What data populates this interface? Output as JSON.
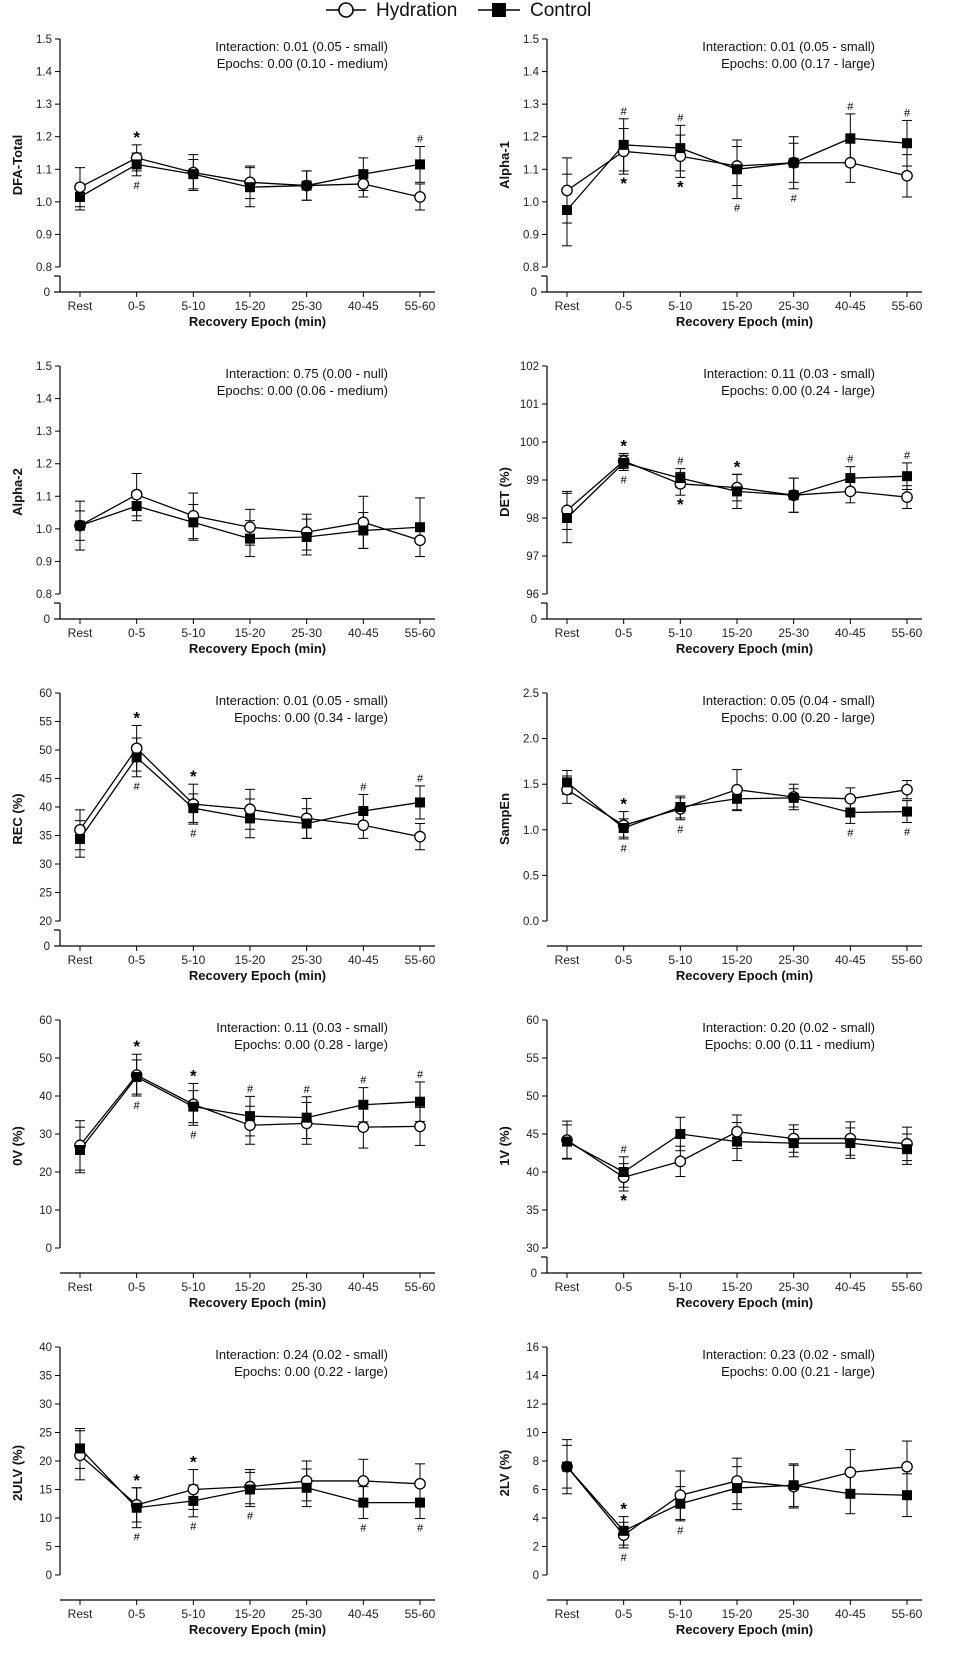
{
  "legend": [
    {
      "name": "Hydration",
      "marker": "open-circle"
    },
    {
      "name": "Control",
      "marker": "filled-square"
    }
  ],
  "chart_data": [
    {
      "type": "line",
      "ylabel": "DFA-Total",
      "xlabel": "Recovery Epoch (min)",
      "categories": [
        "Rest",
        "0-5",
        "5-10",
        "15-20",
        "25-30",
        "40-45",
        "55-60"
      ],
      "ylim": [
        0.8,
        1.5
      ],
      "ticks": [
        "0.8",
        "0.9",
        "1.0",
        "1.1",
        "1.2",
        "1.3",
        "1.4",
        "1.5"
      ],
      "zero_break": true,
      "annotation_lines": [
        "Interaction: 0.01 (0.05 - small)",
        "Epochs: 0.00 (0.10 - medium)"
      ],
      "series": [
        {
          "name": "Hydration",
          "values": [
            1.045,
            1.135,
            1.09,
            1.06,
            1.05,
            1.055,
            1.015
          ],
          "err": [
            0.06,
            0.04,
            0.055,
            0.05,
            0.045,
            0.04,
            0.04
          ]
        },
        {
          "name": "Control",
          "values": [
            1.015,
            1.115,
            1.085,
            1.045,
            1.05,
            1.085,
            1.115
          ],
          "err": [
            0.04,
            0.035,
            0.045,
            0.06,
            0.045,
            0.05,
            0.055
          ]
        }
      ],
      "marks_above": [
        {
          "i": 1,
          "s": "*"
        },
        {
          "i": 6,
          "s": "#"
        }
      ],
      "marks_below": [
        {
          "i": 1,
          "s": "#"
        }
      ]
    },
    {
      "type": "line",
      "ylabel": "Alpha-1",
      "xlabel": "Recovery Epoch (min)",
      "categories": [
        "Rest",
        "0-5",
        "5-10",
        "15-20",
        "25-30",
        "40-45",
        "55-60"
      ],
      "ylim": [
        0.8,
        1.5
      ],
      "ticks": [
        "0.8",
        "0.9",
        "1.0",
        "1.1",
        "1.2",
        "1.3",
        "1.4",
        "1.5"
      ],
      "zero_break": true,
      "annotation_lines": [
        "Interaction: 0.01 (0.05 - small)",
        "Epochs: 0.00 (0.17 - large)"
      ],
      "series": [
        {
          "name": "Hydration",
          "values": [
            1.035,
            1.155,
            1.14,
            1.11,
            1.12,
            1.12,
            1.08
          ],
          "err": [
            0.1,
            0.07,
            0.065,
            0.06,
            0.08,
            0.06,
            0.065
          ]
        },
        {
          "name": "Control",
          "values": [
            0.975,
            1.175,
            1.165,
            1.1,
            1.12,
            1.195,
            1.18
          ],
          "err": [
            0.11,
            0.08,
            0.07,
            0.09,
            0.06,
            0.075,
            0.07
          ]
        }
      ],
      "marks_above": [
        {
          "i": 1,
          "s": "#"
        },
        {
          "i": 2,
          "s": "#"
        },
        {
          "i": 5,
          "s": "#"
        },
        {
          "i": 6,
          "s": "#"
        }
      ],
      "marks_below": [
        {
          "i": 1,
          "s": "*"
        },
        {
          "i": 2,
          "s": "*"
        },
        {
          "i": 3,
          "s": "#"
        },
        {
          "i": 4,
          "s": "#"
        }
      ]
    },
    {
      "type": "line",
      "ylabel": "Alpha-2",
      "xlabel": "Recovery Epoch (min)",
      "categories": [
        "Rest",
        "0-5",
        "5-10",
        "15-20",
        "25-30",
        "40-45",
        "55-60"
      ],
      "ylim": [
        0.8,
        1.5
      ],
      "ticks": [
        "0.8",
        "0.9",
        "1.0",
        "1.1",
        "1.2",
        "1.3",
        "1.4",
        "1.5"
      ],
      "zero_break": true,
      "annotation_lines": [
        "Interaction: 0.75 (0.00 - null)",
        "Epochs: 0.00 (0.06 - medium)"
      ],
      "series": [
        {
          "name": "Hydration",
          "values": [
            1.01,
            1.105,
            1.04,
            1.005,
            0.99,
            1.02,
            0.965
          ],
          "err": [
            0.075,
            0.065,
            0.07,
            0.055,
            0.055,
            0.08,
            0.05
          ]
        },
        {
          "name": "Control",
          "values": [
            1.01,
            1.07,
            1.02,
            0.97,
            0.975,
            0.995,
            1.005
          ],
          "err": [
            0.045,
            0.045,
            0.055,
            0.055,
            0.055,
            0.055,
            0.09
          ]
        }
      ],
      "marks_above": [],
      "marks_below": []
    },
    {
      "type": "line",
      "ylabel": "DET (%)",
      "xlabel": "Recovery Epoch (min)",
      "categories": [
        "Rest",
        "0-5",
        "5-10",
        "15-20",
        "25-30",
        "40-45",
        "55-60"
      ],
      "ylim": [
        96,
        102
      ],
      "ticks": [
        "96",
        "97",
        "98",
        "99",
        "100",
        "101",
        "102"
      ],
      "zero_break": true,
      "annotation_lines": [
        "Interaction: 0.11 (0.03 - small)",
        "Epochs: 0.00 (0.24 - large)"
      ],
      "series": [
        {
          "name": "Hydration",
          "values": [
            98.2,
            99.5,
            98.9,
            98.8,
            98.6,
            98.7,
            98.55
          ],
          "err": [
            0.5,
            0.2,
            0.3,
            0.35,
            0.45,
            0.3,
            0.3
          ]
        },
        {
          "name": "Control",
          "values": [
            98.0,
            99.45,
            99.05,
            98.7,
            98.6,
            99.05,
            99.1
          ],
          "err": [
            0.65,
            0.2,
            0.25,
            0.45,
            0.45,
            0.3,
            0.35
          ]
        }
      ],
      "marks_above": [
        {
          "i": 1,
          "s": "*"
        },
        {
          "i": 2,
          "s": "#"
        },
        {
          "i": 3,
          "s": "*"
        },
        {
          "i": 5,
          "s": "#"
        },
        {
          "i": 6,
          "s": "#"
        }
      ],
      "marks_below": [
        {
          "i": 1,
          "s": "#"
        },
        {
          "i": 2,
          "s": "*"
        }
      ]
    },
    {
      "type": "line",
      "ylabel": "REC (%)",
      "xlabel": "Recovery Epoch (min)",
      "categories": [
        "Rest",
        "0-5",
        "5-10",
        "15-20",
        "25-30",
        "40-45",
        "55-60"
      ],
      "ylim": [
        20,
        60
      ],
      "ticks": [
        "20",
        "25",
        "30",
        "35",
        "40",
        "45",
        "50",
        "55",
        "60"
      ],
      "zero_break": true,
      "annotation_lines": [
        "Interaction: 0.01 (0.05 - small)",
        "Epochs: 0.00 (0.34 - large)"
      ],
      "series": [
        {
          "name": "Hydration",
          "values": [
            36,
            50.3,
            40.5,
            39.6,
            38,
            36.8,
            34.8
          ],
          "err": [
            3.5,
            4,
            3.5,
            3.5,
            3.5,
            2.3,
            2.3
          ]
        },
        {
          "name": "Control",
          "values": [
            34.4,
            48.7,
            39.8,
            38,
            37.1,
            39.3,
            40.8
          ],
          "err": [
            3.2,
            3.4,
            2.5,
            3.4,
            2.6,
            2.9,
            2.9
          ]
        }
      ],
      "marks_above": [
        {
          "i": 1,
          "s": "*"
        },
        {
          "i": 2,
          "s": "*"
        },
        {
          "i": 5,
          "s": "#"
        },
        {
          "i": 6,
          "s": "#"
        }
      ],
      "marks_below": [
        {
          "i": 1,
          "s": "#"
        },
        {
          "i": 2,
          "s": "#"
        }
      ]
    },
    {
      "type": "line",
      "ylabel": "SampEn",
      "xlabel": "Recovery Epoch (min)",
      "categories": [
        "Rest",
        "0-5",
        "5-10",
        "15-20",
        "25-30",
        "40-45",
        "55-60"
      ],
      "ylim": [
        0,
        2.5
      ],
      "ticks": [
        "0.0",
        "0.5",
        "1.0",
        "1.5",
        "2.0",
        "2.5"
      ],
      "zero_break": false,
      "annotation_lines": [
        "Interaction: 0.05 (0.04 - small)",
        "Epochs: 0.00 (0.20 - large)"
      ],
      "series": [
        {
          "name": "Hydration",
          "values": [
            1.44,
            1.05,
            1.23,
            1.44,
            1.36,
            1.34,
            1.44
          ],
          "err": [
            0.15,
            0.15,
            0.12,
            0.22,
            0.14,
            0.12,
            0.1
          ]
        },
        {
          "name": "Control",
          "values": [
            1.52,
            1.02,
            1.25,
            1.34,
            1.35,
            1.19,
            1.2
          ],
          "err": [
            0.13,
            0.1,
            0.12,
            0.13,
            0.1,
            0.12,
            0.12
          ]
        }
      ],
      "marks_above": [
        {
          "i": 1,
          "s": "*"
        }
      ],
      "marks_below": [
        {
          "i": 1,
          "s": "#"
        },
        {
          "i": 2,
          "s": "#"
        },
        {
          "i": 5,
          "s": "#"
        },
        {
          "i": 6,
          "s": "#"
        }
      ]
    },
    {
      "type": "line",
      "ylabel": "0V (%)",
      "xlabel": "Recovery Epoch (min)",
      "categories": [
        "Rest",
        "0-5",
        "5-10",
        "15-20",
        "25-30",
        "40-45",
        "55-60"
      ],
      "ylim": [
        0,
        60
      ],
      "ticks": [
        "0",
        "10",
        "20",
        "30",
        "40",
        "50",
        "60"
      ],
      "zero_break": false,
      "annotation_lines": [
        "Interaction: 0.11 (0.03 - small)",
        "Epochs: 0.00 (0.28 - large)"
      ],
      "series": [
        {
          "name": "Hydration",
          "values": [
            27,
            45.5,
            37.8,
            32.3,
            32.8,
            31.8,
            32
          ],
          "err": [
            6.5,
            5.5,
            5.5,
            5,
            5.5,
            5.5,
            5
          ]
        },
        {
          "name": "Control",
          "values": [
            25.8,
            45,
            37.2,
            34.7,
            34.3,
            37.7,
            38.5
          ],
          "err": [
            6,
            4.5,
            4.2,
            5.2,
            5.5,
            4.5,
            5.2
          ]
        }
      ],
      "marks_above": [
        {
          "i": 1,
          "s": "*"
        },
        {
          "i": 2,
          "s": "*"
        },
        {
          "i": 3,
          "s": "#"
        },
        {
          "i": 4,
          "s": "#"
        },
        {
          "i": 5,
          "s": "#"
        },
        {
          "i": 6,
          "s": "#"
        }
      ],
      "marks_below": [
        {
          "i": 1,
          "s": "#"
        },
        {
          "i": 2,
          "s": "#"
        }
      ]
    },
    {
      "type": "line",
      "ylabel": "1V (%)",
      "xlabel": "Recovery Epoch (min)",
      "categories": [
        "Rest",
        "0-5",
        "5-10",
        "15-20",
        "25-30",
        "40-45",
        "55-60"
      ],
      "ylim": [
        30,
        60
      ],
      "ticks": [
        "30",
        "35",
        "40",
        "45",
        "50",
        "55",
        "60"
      ],
      "zero_break": true,
      "annotation_lines": [
        "Interaction: 0.20 (0.02 - small)",
        "Epochs: 0.00 (0.11 - medium)"
      ],
      "series": [
        {
          "name": "Hydration",
          "values": [
            44.2,
            39.3,
            41.4,
            45.3,
            44.4,
            44.4,
            43.7
          ],
          "err": [
            2.5,
            1.8,
            2,
            2.2,
            1.8,
            2.2,
            2.2
          ]
        },
        {
          "name": "Control",
          "values": [
            44,
            40,
            45,
            44,
            43.8,
            43.8,
            43
          ],
          "err": [
            2.2,
            2,
            2.2,
            2.5,
            1.8,
            2,
            2
          ]
        }
      ],
      "marks_above": [
        {
          "i": 1,
          "s": "#"
        }
      ],
      "marks_below": [
        {
          "i": 1,
          "s": "*"
        }
      ]
    },
    {
      "type": "line",
      "ylabel": "2ULV (%)",
      "xlabel": "Recovery Epoch (min)",
      "categories": [
        "Rest",
        "0-5",
        "5-10",
        "15-20",
        "25-30",
        "40-45",
        "55-60"
      ],
      "ylim": [
        0,
        40
      ],
      "ticks": [
        "0",
        "5",
        "10",
        "15",
        "20",
        "25",
        "30",
        "35",
        "40"
      ],
      "zero_break": false,
      "annotation_lines": [
        "Interaction: 0.24 (0.02 - small)",
        "Epochs: 0.00 (0.22 - large)"
      ],
      "series": [
        {
          "name": "Hydration",
          "values": [
            21,
            12.3,
            15,
            15.5,
            16.5,
            16.5,
            16
          ],
          "err": [
            4.3,
            3,
            3.5,
            3,
            3.5,
            3.8,
            3.5
          ]
        },
        {
          "name": "Control",
          "values": [
            22.2,
            11.8,
            13,
            15,
            15.3,
            12.7,
            12.7
          ],
          "err": [
            3.5,
            3.5,
            2.8,
            3,
            3.3,
            2.8,
            2.8
          ]
        }
      ],
      "marks_above": [
        {
          "i": 1,
          "s": "*"
        },
        {
          "i": 2,
          "s": "*"
        }
      ],
      "marks_below": [
        {
          "i": 1,
          "s": "#"
        },
        {
          "i": 2,
          "s": "#"
        },
        {
          "i": 3,
          "s": "#"
        },
        {
          "i": 5,
          "s": "#"
        },
        {
          "i": 6,
          "s": "#"
        }
      ]
    },
    {
      "type": "line",
      "ylabel": "2LV (%)",
      "xlabel": "Recovery Epoch (min)",
      "categories": [
        "Rest",
        "0-5",
        "5-10",
        "15-20",
        "25-30",
        "40-45",
        "55-60"
      ],
      "ylim": [
        0,
        16
      ],
      "ticks": [
        "0",
        "2",
        "4",
        "6",
        "8",
        "10",
        "12",
        "14",
        "16"
      ],
      "zero_break": false,
      "annotation_lines": [
        "Interaction: 0.23 (0.02 - small)",
        "Epochs: 0.00 (0.21 - large)"
      ],
      "series": [
        {
          "name": "Hydration",
          "values": [
            7.6,
            2.8,
            5.6,
            6.6,
            6.2,
            7.2,
            7.6
          ],
          "err": [
            1.9,
            0.9,
            1.7,
            1.6,
            1.5,
            1.6,
            1.8
          ]
        },
        {
          "name": "Control",
          "values": [
            7.6,
            3.1,
            5.0,
            6.1,
            6.3,
            5.7,
            5.6
          ],
          "err": [
            1.5,
            1,
            1.2,
            1.5,
            1.5,
            1.4,
            1.5
          ]
        }
      ],
      "marks_above": [
        {
          "i": 1,
          "s": "*"
        }
      ],
      "marks_below": [
        {
          "i": 1,
          "s": "#"
        },
        {
          "i": 2,
          "s": "#"
        }
      ]
    }
  ]
}
